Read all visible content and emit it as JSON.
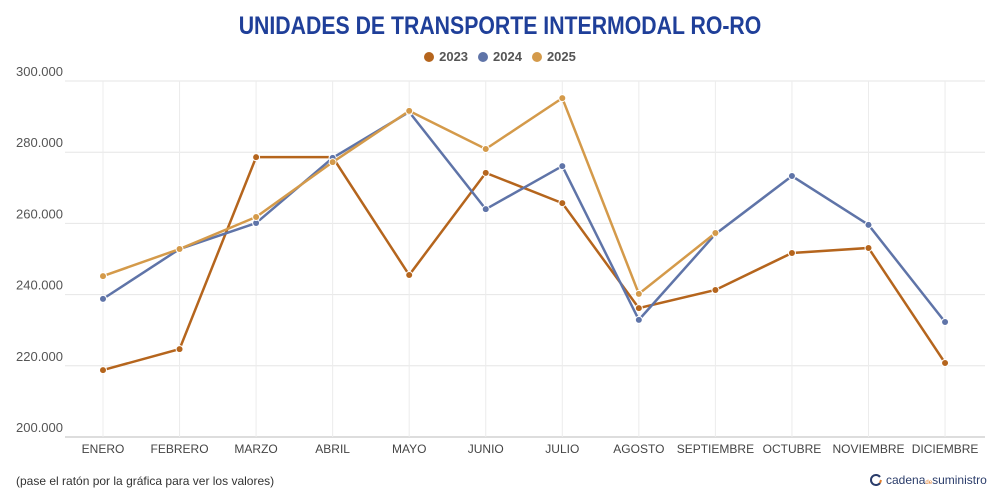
{
  "chart_data": {
    "type": "line",
    "title": "UNIDADES DE TRANSPORTE INTERMODAL RO-RO",
    "categories": [
      "ENERO",
      "FEBRERO",
      "MARZO",
      "ABRIL",
      "MAYO",
      "JUNIO",
      "JULIO",
      "AGOSTO",
      "SEPTIEMBRE",
      "OCTUBRE",
      "NOVIEMBRE",
      "DICIEMBRE"
    ],
    "ylim": [
      200000,
      300000
    ],
    "yticks": [
      200000,
      220000,
      240000,
      260000,
      280000,
      300000
    ],
    "ytick_labels": [
      "200.000",
      "220.000",
      "240.000",
      "260.000",
      "280.000",
      "300.000"
    ],
    "grid": true,
    "legend_placement": "top-center",
    "series": [
      {
        "name": "2023",
        "color": "#b5651d",
        "values": [
          218800,
          224700,
          278600,
          278600,
          245500,
          274200,
          265700,
          236200,
          241300,
          251700,
          253100,
          220800
        ]
      },
      {
        "name": "2024",
        "color": "#5f74a8",
        "values": [
          238800,
          252800,
          260100,
          278400,
          291300,
          264000,
          276100,
          232900,
          257000,
          273300,
          259600,
          232300
        ]
      },
      {
        "name": "2025",
        "color": "#d49a4a",
        "values": [
          245200,
          252800,
          261800,
          277200,
          291600,
          280900,
          295200,
          240200,
          257300,
          null,
          null,
          null
        ]
      }
    ]
  },
  "footer": {
    "note": "(pase el ratón por la gráfica para ver los valores)",
    "logo_text": "cadena de suministro"
  }
}
